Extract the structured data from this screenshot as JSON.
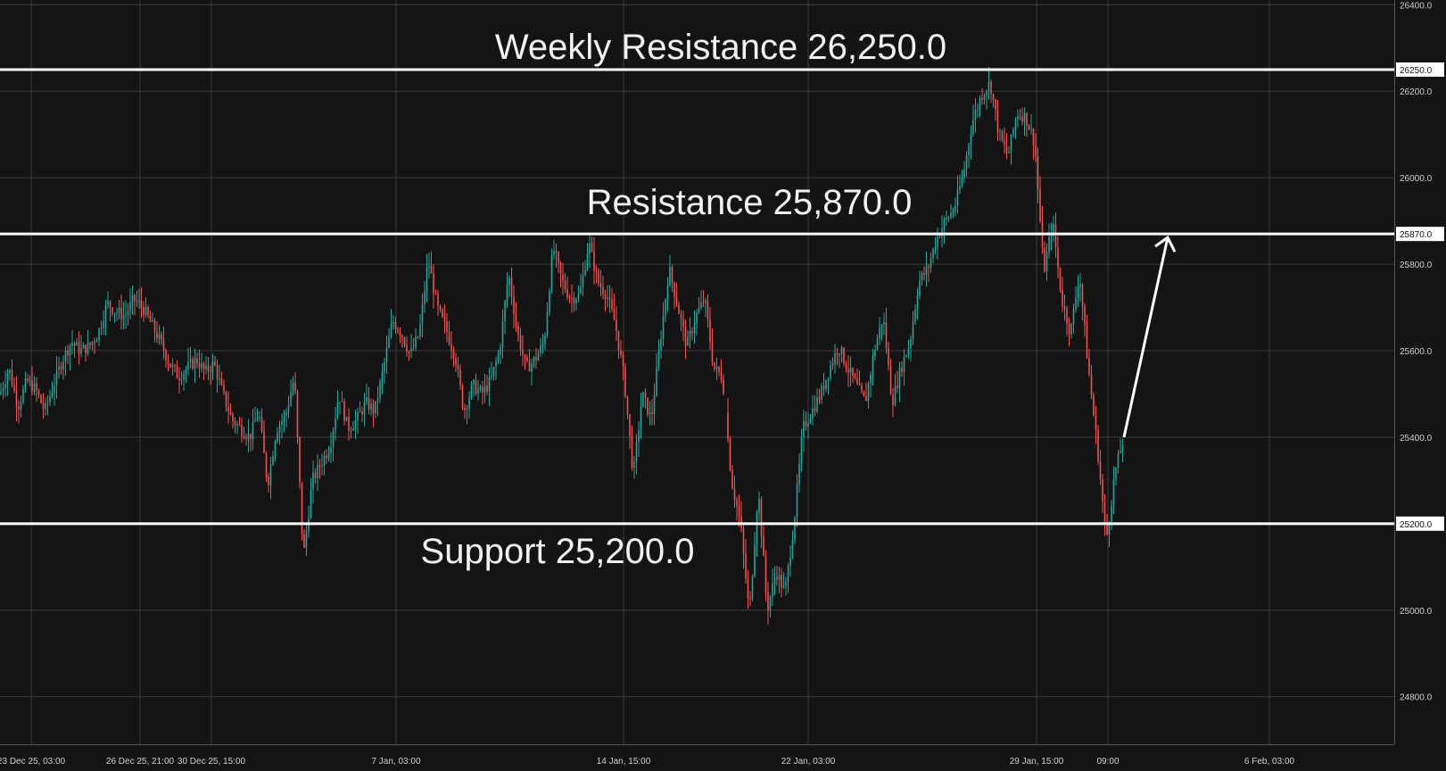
{
  "chart_data": {
    "type": "candlestick",
    "title": "",
    "xlabel": "",
    "ylabel": "",
    "ylim": [
      24750,
      26400
    ],
    "y_ticks": [
      26400.0,
      26200.0,
      26000.0,
      25800.0,
      25600.0,
      25400.0,
      25000.0,
      24800.0
    ],
    "x_ticks": [
      "23 Dec 25, 03:00",
      "26 Dec 25, 21:00",
      "30 Dec 25, 15:00",
      "7 Jan, 03:00",
      "14 Jan, 15:00",
      "22 Jan, 03:00",
      "29 Jan, 15:00",
      "09:00",
      "6 Feb, 03:00"
    ],
    "grid": true,
    "colors": {
      "up": "#26a69a",
      "down": "#ef5350",
      "levels": "#ffffff",
      "grid": "#3a3a3a",
      "background": "#141414"
    },
    "levels": [
      {
        "label": "Weekly Resistance 26,250.0",
        "value": 26250.0,
        "badge": "26250.0"
      },
      {
        "label": "Resistance 25,870.0",
        "value": 25870.0,
        "badge": "25870.0"
      },
      {
        "label": "Support 25,200.0",
        "value": 25200.0,
        "badge": "25200.0"
      }
    ],
    "annotations": [
      {
        "type": "arrow",
        "from": {
          "x": "09:00",
          "y": 25400
        },
        "to": {
          "x": "09:00",
          "y": 25870
        }
      }
    ],
    "close_path": [
      [
        0,
        25500
      ],
      [
        10,
        25560
      ],
      [
        20,
        25470
      ],
      [
        30,
        25530
      ],
      [
        40,
        25510
      ],
      [
        50,
        25460
      ],
      [
        60,
        25520
      ],
      [
        70,
        25580
      ],
      [
        80,
        25620
      ],
      [
        90,
        25600
      ],
      [
        100,
        25610
      ],
      [
        110,
        25640
      ],
      [
        120,
        25710
      ],
      [
        130,
        25690
      ],
      [
        140,
        25680
      ],
      [
        150,
        25720
      ],
      [
        160,
        25700
      ],
      [
        170,
        25660
      ],
      [
        180,
        25620
      ],
      [
        190,
        25570
      ],
      [
        200,
        25540
      ],
      [
        210,
        25560
      ],
      [
        220,
        25580
      ],
      [
        230,
        25550
      ],
      [
        240,
        25570
      ],
      [
        250,
        25500
      ],
      [
        260,
        25440
      ],
      [
        270,
        25420
      ],
      [
        280,
        25400
      ],
      [
        290,
        25460
      ],
      [
        300,
        25290
      ],
      [
        310,
        25420
      ],
      [
        320,
        25450
      ],
      [
        330,
        25540
      ],
      [
        340,
        25120
      ],
      [
        350,
        25300
      ],
      [
        360,
        25340
      ],
      [
        370,
        25380
      ],
      [
        380,
        25500
      ],
      [
        390,
        25420
      ],
      [
        400,
        25440
      ],
      [
        410,
        25480
      ],
      [
        420,
        25460
      ],
      [
        430,
        25560
      ],
      [
        440,
        25670
      ],
      [
        450,
        25640
      ],
      [
        460,
        25590
      ],
      [
        470,
        25640
      ],
      [
        480,
        25810
      ],
      [
        490,
        25700
      ],
      [
        500,
        25650
      ],
      [
        510,
        25590
      ],
      [
        520,
        25460
      ],
      [
        530,
        25520
      ],
      [
        540,
        25500
      ],
      [
        550,
        25530
      ],
      [
        560,
        25600
      ],
      [
        570,
        25780
      ],
      [
        580,
        25640
      ],
      [
        590,
        25560
      ],
      [
        600,
        25580
      ],
      [
        610,
        25620
      ],
      [
        620,
        25840
      ],
      [
        630,
        25760
      ],
      [
        640,
        25720
      ],
      [
        650,
        25730
      ],
      [
        660,
        25850
      ],
      [
        670,
        25760
      ],
      [
        680,
        25730
      ],
      [
        690,
        25660
      ],
      [
        700,
        25530
      ],
      [
        710,
        25310
      ],
      [
        720,
        25500
      ],
      [
        730,
        25440
      ],
      [
        740,
        25620
      ],
      [
        750,
        25790
      ],
      [
        760,
        25700
      ],
      [
        770,
        25610
      ],
      [
        780,
        25680
      ],
      [
        790,
        25720
      ],
      [
        800,
        25560
      ],
      [
        810,
        25540
      ],
      [
        820,
        25300
      ],
      [
        830,
        25200
      ],
      [
        840,
        24990
      ],
      [
        850,
        25280
      ],
      [
        860,
        25000
      ],
      [
        870,
        25090
      ],
      [
        880,
        25040
      ],
      [
        890,
        25200
      ],
      [
        900,
        25420
      ],
      [
        910,
        25460
      ],
      [
        920,
        25500
      ],
      [
        930,
        25560
      ],
      [
        940,
        25610
      ],
      [
        950,
        25560
      ],
      [
        960,
        25520
      ],
      [
        970,
        25480
      ],
      [
        980,
        25600
      ],
      [
        990,
        25680
      ],
      [
        1000,
        25480
      ],
      [
        1010,
        25560
      ],
      [
        1020,
        25620
      ],
      [
        1030,
        25760
      ],
      [
        1040,
        25790
      ],
      [
        1050,
        25860
      ],
      [
        1060,
        25900
      ],
      [
        1070,
        25930
      ],
      [
        1080,
        26010
      ],
      [
        1090,
        26130
      ],
      [
        1100,
        26190
      ],
      [
        1110,
        26220
      ],
      [
        1120,
        26100
      ],
      [
        1130,
        26050
      ],
      [
        1140,
        26150
      ],
      [
        1150,
        26140
      ],
      [
        1160,
        26080
      ],
      [
        1170,
        25780
      ],
      [
        1180,
        25900
      ],
      [
        1190,
        25720
      ],
      [
        1200,
        25640
      ],
      [
        1210,
        25780
      ],
      [
        1220,
        25560
      ],
      [
        1230,
        25380
      ],
      [
        1240,
        25160
      ],
      [
        1250,
        25320
      ],
      [
        1260,
        25400
      ]
    ]
  }
}
